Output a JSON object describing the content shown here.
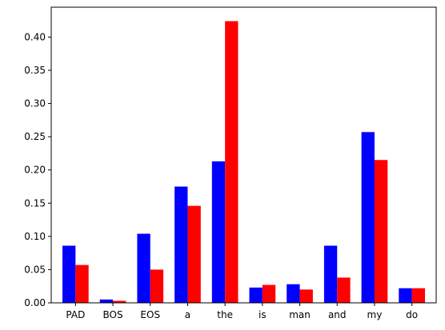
{
  "chart_data": {
    "type": "bar",
    "title": "",
    "xlabel": "",
    "ylabel": "",
    "categories": [
      "PAD",
      "BOS",
      "EOS",
      "a",
      "the",
      "is",
      "man",
      "and",
      "my",
      "do"
    ],
    "series": [
      {
        "color": "#0000ff",
        "values": [
          0.086,
          0.005,
          0.104,
          0.175,
          0.213,
          0.023,
          0.028,
          0.086,
          0.257,
          0.022
        ]
      },
      {
        "color": "#ff0000",
        "values": [
          0.057,
          0.003,
          0.05,
          0.146,
          0.424,
          0.027,
          0.02,
          0.038,
          0.215,
          0.022
        ]
      }
    ],
    "ylim": [
      0,
      0.445
    ],
    "yticks": [
      "0.00",
      "0.05",
      "0.10",
      "0.15",
      "0.20",
      "0.25",
      "0.30",
      "0.35",
      "0.40"
    ],
    "ytick_values": [
      0,
      0.05,
      0.1,
      0.15,
      0.2,
      0.25,
      0.3,
      0.35,
      0.4
    ],
    "grid": false,
    "legend": "none"
  }
}
